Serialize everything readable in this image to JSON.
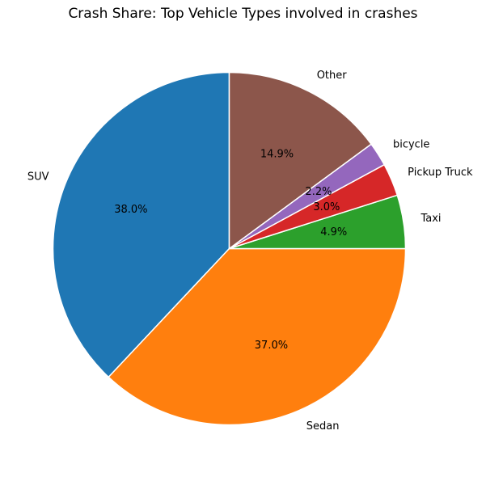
{
  "chart_data": {
    "type": "pie",
    "title": "Crash Share: Top Vehicle Types involved in crashes",
    "start_angle_deg": 90,
    "direction": "counterclockwise",
    "slices": [
      {
        "label": "SUV",
        "value": 38.0,
        "pct_label": "38.0%",
        "color": "#1f77b4"
      },
      {
        "label": "Sedan",
        "value": 37.0,
        "pct_label": "37.0%",
        "color": "#ff7f0e"
      },
      {
        "label": "Taxi",
        "value": 4.9,
        "pct_label": "4.9%",
        "color": "#2ca02c"
      },
      {
        "label": "Pickup Truck",
        "value": 3.0,
        "pct_label": "3.0%",
        "color": "#d62728"
      },
      {
        "label": "bicycle",
        "value": 2.2,
        "pct_label": "2.2%",
        "color": "#9467bd"
      },
      {
        "label": "Other",
        "value": 14.9,
        "pct_label": "14.9%",
        "color": "#8c564b"
      }
    ]
  }
}
